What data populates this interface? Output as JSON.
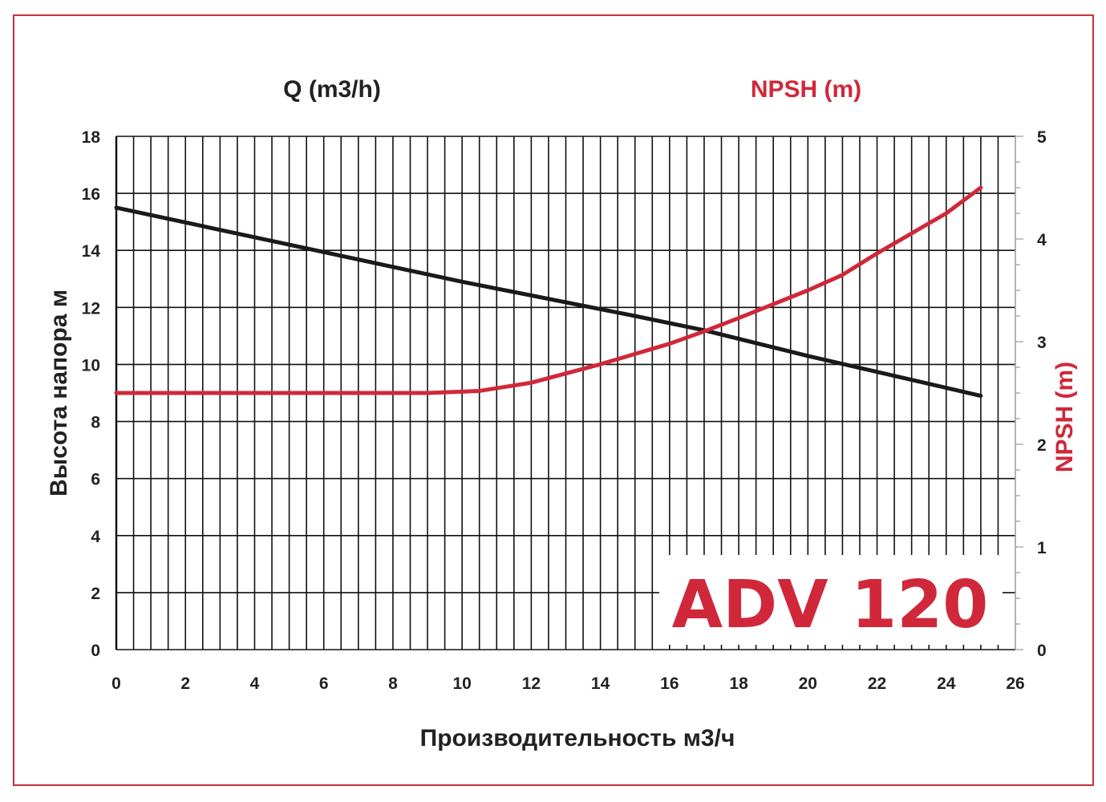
{
  "chart_data": {
    "type": "line",
    "title": "ADV 120",
    "top_left_label": "Q (m3/h)",
    "xlabel": "Производительность м3/ч",
    "ylabel": "Высота напора м",
    "y2label": "NPSH (m)",
    "xlim": [
      0,
      26
    ],
    "ylim": [
      0,
      18
    ],
    "y2lim": [
      0,
      5
    ],
    "xticks": [
      0,
      2,
      4,
      6,
      8,
      10,
      12,
      14,
      16,
      18,
      20,
      22,
      24,
      26
    ],
    "yticks": [
      0,
      2,
      4,
      6,
      8,
      10,
      12,
      14,
      16,
      18
    ],
    "y2ticks": [
      0,
      1,
      2,
      3,
      4,
      5
    ],
    "grid": true,
    "series": [
      {
        "axis": "left",
        "color": "#1a1a1a",
        "x": [
          0,
          5,
          10,
          15,
          17,
          20,
          25
        ],
        "y": [
          15.5,
          14.2,
          12.9,
          11.7,
          11.2,
          10.3,
          8.9
        ]
      },
      {
        "axis": "right",
        "color": "#d0283a",
        "x": [
          0,
          9,
          10.5,
          12,
          14,
          16,
          17,
          18,
          20,
          21,
          22,
          24,
          25
        ],
        "y": [
          2.5,
          2.5,
          2.52,
          2.6,
          2.78,
          2.98,
          3.1,
          3.23,
          3.5,
          3.65,
          3.86,
          4.25,
          4.5
        ]
      }
    ],
    "colors": {
      "accent": "#d0283a",
      "frame": "#c8323c"
    }
  }
}
